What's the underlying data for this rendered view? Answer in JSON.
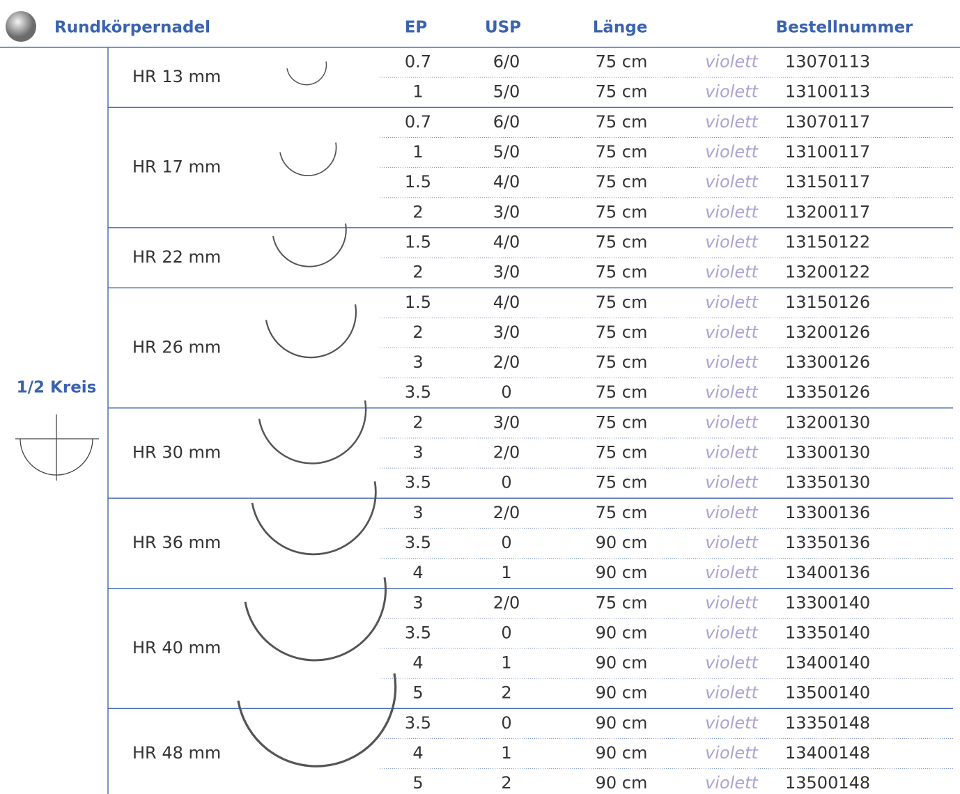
{
  "header": {
    "title": "Rundkörpernadel",
    "columns": [
      "EP",
      "USP",
      "Länge",
      "Bestellnummer"
    ]
  },
  "shape": {
    "label": "1/2 Kreis"
  },
  "groups": [
    {
      "name": "HR 13 mm",
      "rows": [
        [
          "0.7",
          "6/0",
          "75 cm",
          "violett",
          "13070113"
        ],
        [
          "1",
          "5/0",
          "75 cm",
          "violett",
          "13100113"
        ]
      ]
    },
    {
      "name": "HR 17 mm",
      "rows": [
        [
          "0.7",
          "6/0",
          "75 cm",
          "violett",
          "13070117"
        ],
        [
          "1",
          "5/0",
          "75 cm",
          "violett",
          "13100117"
        ],
        [
          "1.5",
          "4/0",
          "75 cm",
          "violett",
          "13150117"
        ],
        [
          "2",
          "3/0",
          "75 cm",
          "violett",
          "13200117"
        ]
      ]
    },
    {
      "name": "HR 22 mm",
      "rows": [
        [
          "1.5",
          "4/0",
          "75 cm",
          "violett",
          "13150122"
        ],
        [
          "2",
          "3/0",
          "75 cm",
          "violett",
          "13200122"
        ]
      ]
    },
    {
      "name": "HR 26 mm",
      "rows": [
        [
          "1.5",
          "4/0",
          "75 cm",
          "violett",
          "13150126"
        ],
        [
          "2",
          "3/0",
          "75 cm",
          "violett",
          "13200126"
        ],
        [
          "3",
          "2/0",
          "75 cm",
          "violett",
          "13300126"
        ],
        [
          "3.5",
          "0",
          "75 cm",
          "violett",
          "13350126"
        ]
      ]
    },
    {
      "name": "HR 30 mm",
      "rows": [
        [
          "2",
          "3/0",
          "75 cm",
          "violett",
          "13200130"
        ],
        [
          "3",
          "2/0",
          "75 cm",
          "violett",
          "13300130"
        ],
        [
          "3.5",
          "0",
          "75 cm",
          "violett",
          "13350130"
        ]
      ]
    },
    {
      "name": "HR 36 mm",
      "rows": [
        [
          "3",
          "2/0",
          "75 cm",
          "violett",
          "13300136"
        ],
        [
          "3.5",
          "0",
          "90 cm",
          "violett",
          "13350136"
        ],
        [
          "4",
          "1",
          "90 cm",
          "violett",
          "13400136"
        ]
      ]
    },
    {
      "name": "HR 40 mm",
      "rows": [
        [
          "3",
          "2/0",
          "75 cm",
          "violett",
          "13300140"
        ],
        [
          "3.5",
          "0",
          "90 cm",
          "violett",
          "13350140"
        ],
        [
          "4",
          "1",
          "90 cm",
          "violett",
          "13400140"
        ],
        [
          "5",
          "2",
          "90 cm",
          "violett",
          "13500140"
        ]
      ]
    },
    {
      "name": "HR 48 mm",
      "rows": [
        [
          "3.5",
          "0",
          "90 cm",
          "violett",
          "13350148"
        ],
        [
          "4",
          "1",
          "90 cm",
          "violett",
          "13400148"
        ],
        [
          "5",
          "2",
          "90 cm",
          "violett",
          "13500148"
        ]
      ]
    }
  ]
}
